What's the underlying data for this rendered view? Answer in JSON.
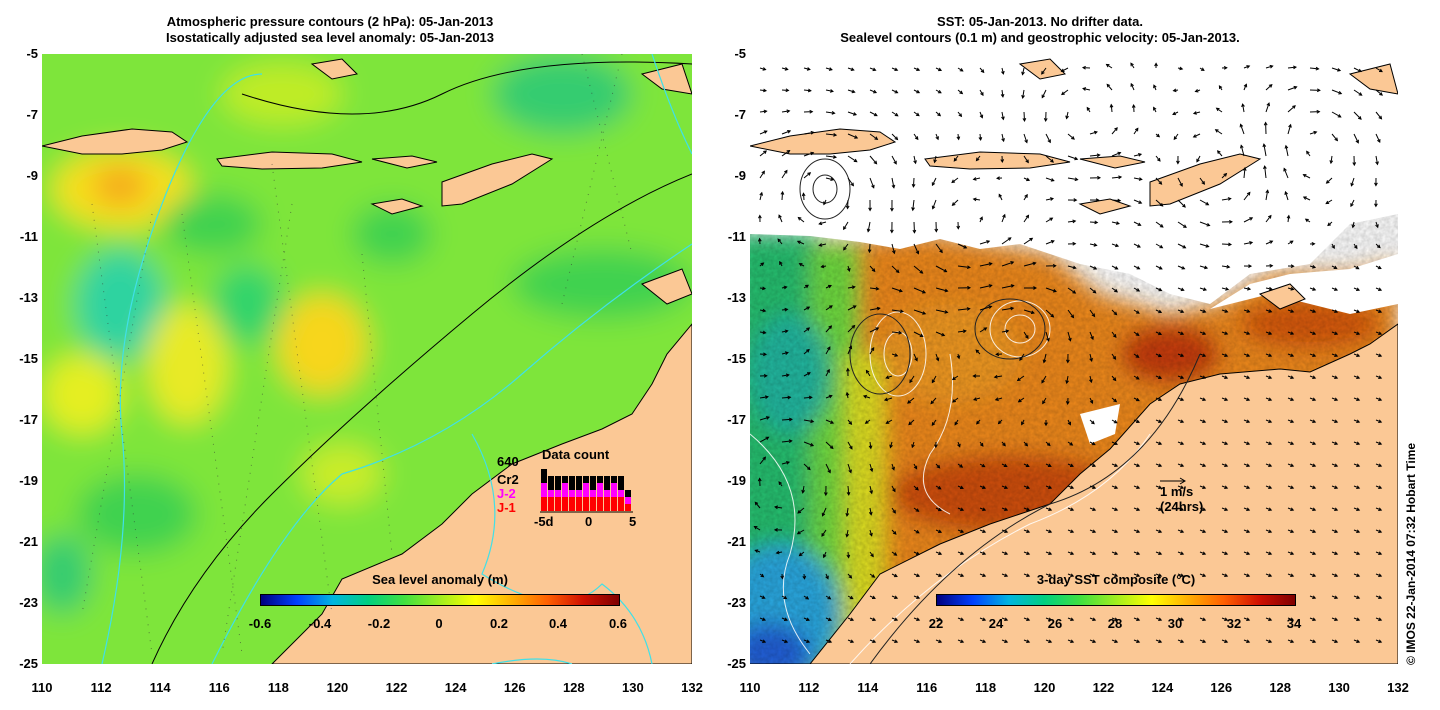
{
  "left_panel": {
    "title_line1": "Atmospheric pressure contours (2 hPa): 05-Jan-2013",
    "title_line2": "Isostatically adjusted sea level anomaly: 05-Jan-2013",
    "colorbar": {
      "title": "Sea level anomaly (m)",
      "range": [
        -0.6,
        0.6
      ],
      "tick_labels": [
        "-0.6",
        "-0.4",
        "-0.2",
        "0",
        "0.2",
        "0.4",
        "0.6"
      ]
    },
    "data_count": {
      "title": "Data count",
      "number": "640",
      "satellites": [
        {
          "label": "Cr2",
          "color": "#000000"
        },
        {
          "label": "J-2",
          "color": "#ff00ff"
        },
        {
          "label": "J-1",
          "color": "#ff0000"
        }
      ],
      "axis_labels": [
        "-5d",
        "0",
        "5"
      ],
      "bars": [
        {
          "j1": 2,
          "j2": 2,
          "cr2": 2
        },
        {
          "j1": 2,
          "j2": 1,
          "cr2": 2
        },
        {
          "j1": 2,
          "j2": 1,
          "cr2": 2
        },
        {
          "j1": 2,
          "j2": 2,
          "cr2": 1
        },
        {
          "j1": 2,
          "j2": 1,
          "cr2": 2
        },
        {
          "j1": 2,
          "j2": 1,
          "cr2": 2
        },
        {
          "j1": 2,
          "j2": 2,
          "cr2": 1
        },
        {
          "j1": 2,
          "j2": 1,
          "cr2": 2
        },
        {
          "j1": 2,
          "j2": 2,
          "cr2": 1
        },
        {
          "j1": 2,
          "j2": 1,
          "cr2": 2
        },
        {
          "j1": 2,
          "j2": 2,
          "cr2": 1
        },
        {
          "j1": 2,
          "j2": 1,
          "cr2": 2
        },
        {
          "j1": 1,
          "j2": 1,
          "cr2": 1
        }
      ]
    }
  },
  "right_panel": {
    "title_line1": "SST: 05-Jan-2013. No drifter data.",
    "title_line2": "Sealevel contours (0.1 m) and geostrophic velocity: 05-Jan-2013.",
    "colorbar": {
      "title": "3-day SST composite (°C)",
      "range": [
        22,
        34
      ],
      "tick_labels": [
        "22",
        "24",
        "26",
        "28",
        "30",
        "32",
        "34"
      ]
    },
    "velocity_scale": {
      "label": "1 m/s",
      "sublabel": "(24hrs)"
    }
  },
  "axes": {
    "lon_range": [
      110,
      132
    ],
    "lat_range": [
      -25,
      -5
    ],
    "lat_labels": [
      "-5",
      "-7",
      "-9",
      "-11",
      "-13",
      "-15",
      "-17",
      "-19",
      "-21",
      "-23",
      "-25"
    ],
    "lon_labels": [
      "110",
      "112",
      "114",
      "116",
      "118",
      "120",
      "122",
      "124",
      "126",
      "128",
      "130",
      "132"
    ]
  },
  "credit": "© IMOS 22-Jan-2014 07:32 Hobart Time",
  "colors": {
    "land": "#fbc895",
    "sla_ramp": [
      "#00007f",
      "#0040ff",
      "#00b4e0",
      "#00d080",
      "#40e040",
      "#a0ee20",
      "#ffff00",
      "#ffb000",
      "#ff6000",
      "#d01000",
      "#7f0000"
    ],
    "sst_ramp": [
      "#00007f",
      "#0040ff",
      "#00b4e0",
      "#00d080",
      "#40e040",
      "#a0ee20",
      "#ffff00",
      "#ffb000",
      "#ff6000",
      "#d01000",
      "#7f0000"
    ],
    "contour": "#40e0e8"
  }
}
